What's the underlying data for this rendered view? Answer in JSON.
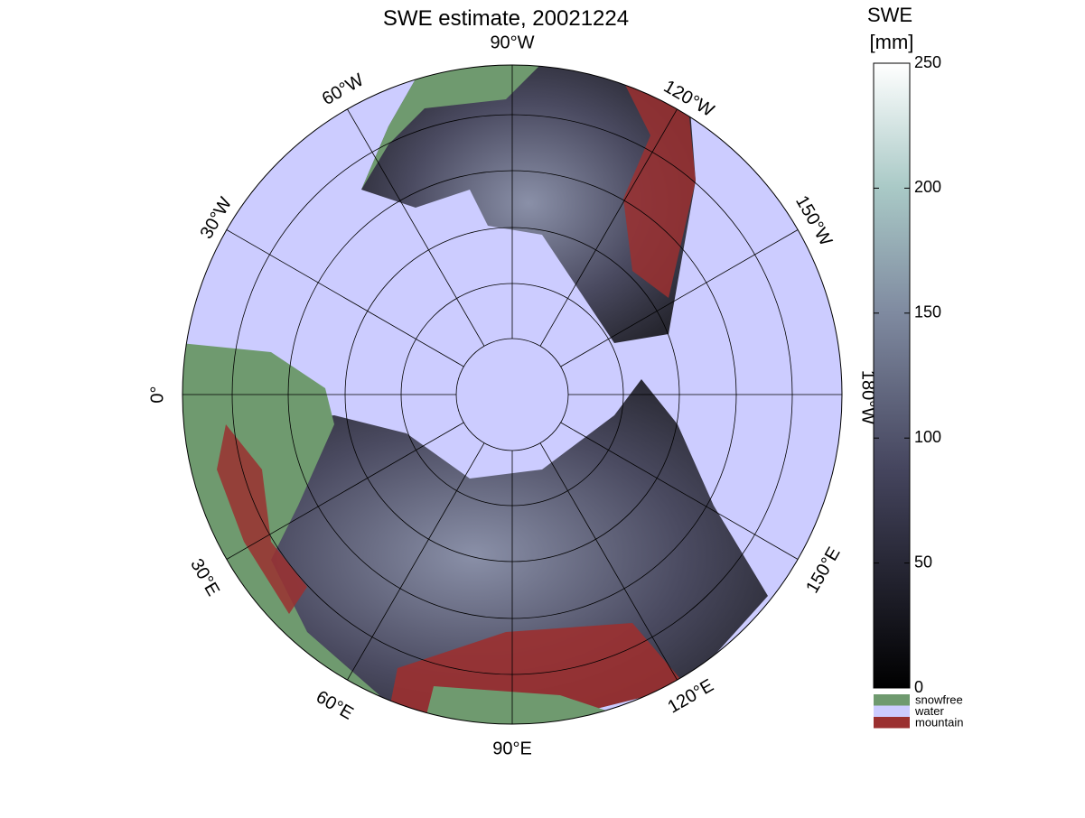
{
  "title": "SWE estimate, 20021224",
  "longitude_labels": [
    "90°W",
    "120°W",
    "150°W",
    "180°W",
    "150°E",
    "120°E",
    "90°E",
    "60°E",
    "30°E",
    "0°",
    "30°W",
    "60°W"
  ],
  "colorbar": {
    "label": [
      "SWE",
      "[mm]"
    ],
    "lim": [
      0,
      250
    ],
    "ticks": [
      0,
      50,
      100,
      150,
      200,
      250
    ]
  },
  "legend": [
    {
      "name": "snowfree",
      "color": "#6f9a6f"
    },
    {
      "name": "water",
      "color": "#ccccff"
    },
    {
      "name": "mountain",
      "color": "#9b3030"
    }
  ]
}
